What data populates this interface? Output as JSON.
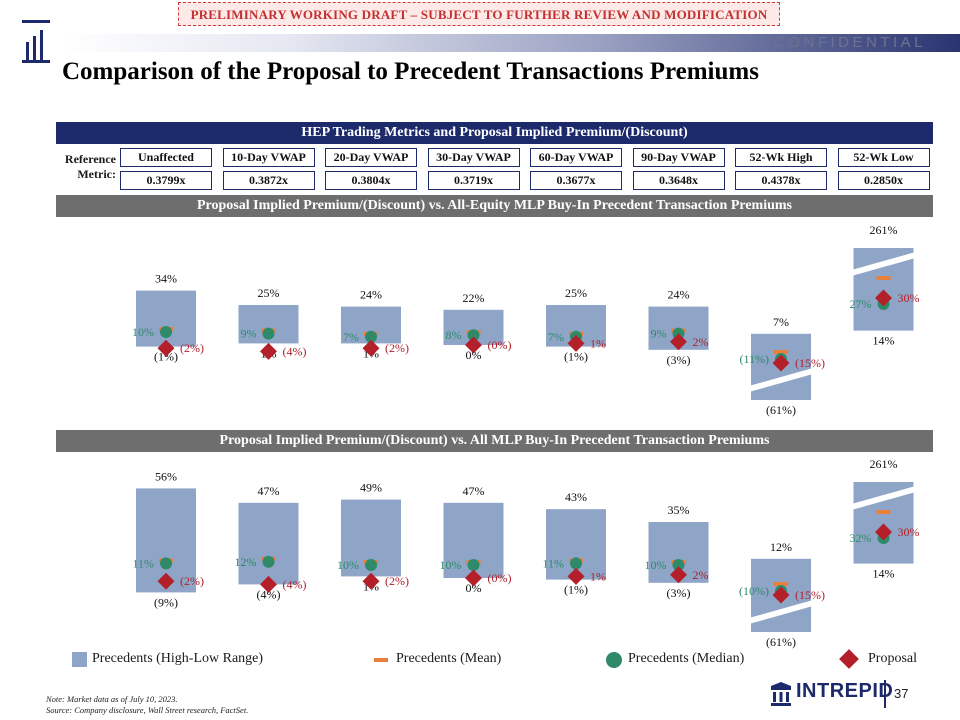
{
  "draft_banner": "PRELIMINARY WORKING DRAFT – SUBJECT TO FURTHER REVIEW AND MODIFICATION",
  "confidential": "CONFIDENTIAL",
  "title": "Comparison of the Proposal to Precedent Transactions Premiums",
  "trading_header": "HEP Trading Metrics and Proposal Implied Premium/(Discount)",
  "reference_label": "Reference Metric:",
  "reference_metrics": [
    {
      "name": "Unaffected",
      "value": "0.3799x"
    },
    {
      "name": "10-Day VWAP",
      "value": "0.3872x"
    },
    {
      "name": "20-Day VWAP",
      "value": "0.3804x"
    },
    {
      "name": "30-Day VWAP",
      "value": "0.3719x"
    },
    {
      "name": "60-Day VWAP",
      "value": "0.3677x"
    },
    {
      "name": "90-Day VWAP",
      "value": "0.3648x"
    },
    {
      "name": "52-Wk High",
      "value": "0.4378x"
    },
    {
      "name": "52-Wk Low",
      "value": "0.2850x"
    }
  ],
  "chart_data": [
    {
      "type": "bar",
      "title": "Proposal Implied Premium/(Discount) vs. All-Equity MLP Buy-In Precedent Transaction Premiums",
      "categories": [
        "Unaffected",
        "10-Day VWAP",
        "20-Day VWAP",
        "30-Day VWAP",
        "60-Day VWAP",
        "90-Day VWAP",
        "52-Wk High",
        "52-Wk Low"
      ],
      "high": [
        34,
        25,
        24,
        22,
        25,
        24,
        7,
        261
      ],
      "low": [
        -1,
        1,
        1,
        0,
        -1,
        -3,
        -61,
        14
      ],
      "mean": [
        10,
        9,
        7,
        8,
        7,
        9,
        -11,
        30
      ],
      "median": [
        10,
        9,
        7,
        8,
        7,
        9,
        -11,
        27
      ],
      "proposal": [
        -2,
        -4,
        -2,
        0,
        1,
        2,
        -15,
        30
      ],
      "high_labels": [
        "34%",
        "25%",
        "24%",
        "22%",
        "25%",
        "24%",
        "7%",
        "261%"
      ],
      "low_labels": [
        "(1%)",
        "1%",
        "1%",
        "0%",
        "(1%)",
        "(3%)",
        "(61%)",
        "14%"
      ],
      "median_labels": [
        "10%",
        "9%",
        "7%",
        "8%",
        "7%",
        "9%",
        "(11%)",
        "27%"
      ],
      "proposal_labels": [
        "(2%)",
        "(4%)",
        "(2%)",
        "(0%)",
        "1%",
        "2%",
        "(15%)",
        "30%"
      ]
    },
    {
      "type": "bar",
      "title": "Proposal Implied Premium/(Discount) vs. All MLP Buy-In Precedent Transaction Premiums",
      "categories": [
        "Unaffected",
        "10-Day VWAP",
        "20-Day VWAP",
        "30-Day VWAP",
        "60-Day VWAP",
        "90-Day VWAP",
        "52-Wk High",
        "52-Wk Low"
      ],
      "high": [
        56,
        47,
        49,
        47,
        43,
        35,
        12,
        261
      ],
      "low": [
        -9,
        -4,
        1,
        0,
        -1,
        -3,
        -61,
        14
      ],
      "mean": [
        11,
        12,
        10,
        10,
        11,
        10,
        -10,
        32
      ],
      "median": [
        11,
        12,
        10,
        10,
        11,
        10,
        -10,
        32
      ],
      "proposal": [
        -2,
        -4,
        -2,
        0,
        1,
        2,
        -15,
        30
      ],
      "high_labels": [
        "56%",
        "47%",
        "49%",
        "47%",
        "43%",
        "35%",
        "12%",
        "261%"
      ],
      "low_labels": [
        "(9%)",
        "(4%)",
        "1%",
        "0%",
        "(1%)",
        "(3%)",
        "(61%)",
        "14%"
      ],
      "median_labels": [
        "11%",
        "12%",
        "10%",
        "10%",
        "11%",
        "10%",
        "(10%)",
        "32%"
      ],
      "proposal_labels": [
        "(2%)",
        "(4%)",
        "(2%)",
        "(0%)",
        "1%",
        "2%",
        "(15%)",
        "30%"
      ]
    }
  ],
  "legend": {
    "range": "Precedents (High-Low Range)",
    "mean": "Precedents (Mean)",
    "median": "Precedents (Median)",
    "proposal": "Proposal"
  },
  "colors": {
    "range": "#8ea5c8",
    "mean": "#e8803a",
    "median": "#2e8a68",
    "proposal": "#b3202a",
    "navy": "#1c2a6c"
  },
  "note_lines": [
    "Note: Market data as of July 10, 2023.",
    "Source: Company disclosure, Wall Street research, FactSet."
  ],
  "brand": "INTREPID",
  "page_number": "37"
}
